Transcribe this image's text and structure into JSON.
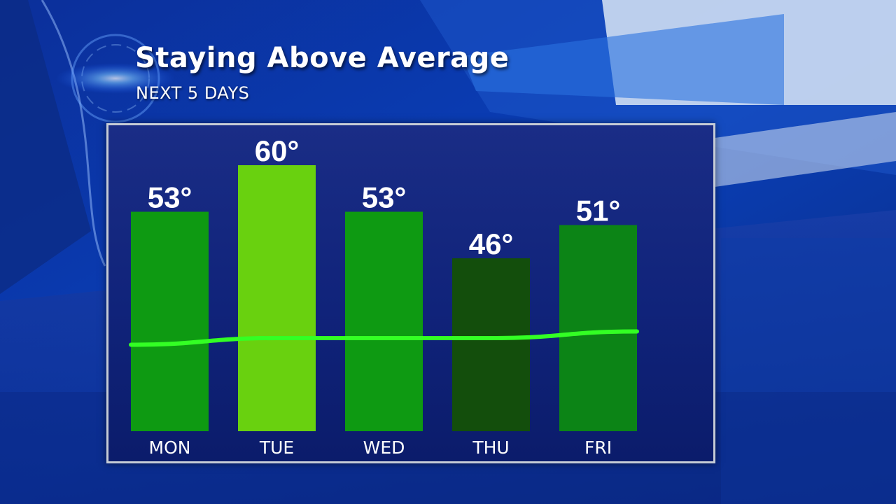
{
  "title": "Staying Above Average",
  "subtitle": "NEXT 5 DAYS",
  "colors": {
    "bar_default": "#0e9a12",
    "bar_high": "#69d10f",
    "bar_low": "#134e0c",
    "bar_fri": "#0c8416",
    "average_line": "#33ff24"
  },
  "chart_data": {
    "type": "bar",
    "categories": [
      "MON",
      "TUE",
      "WED",
      "THU",
      "FRI"
    ],
    "values": [
      53,
      60,
      53,
      46,
      51
    ],
    "value_labels": [
      "53°",
      "60°",
      "53°",
      "46°",
      "51°"
    ],
    "bar_colors": [
      "#0e9a12",
      "#69d10f",
      "#0e9a12",
      "#134e0c",
      "#0c8416"
    ],
    "average_line": {
      "values": [
        33,
        34,
        34,
        34,
        35
      ]
    },
    "ylim": [
      20,
      66
    ],
    "grid": false,
    "title": "Staying Above Average",
    "subtitle": "NEXT 5 DAYS"
  }
}
